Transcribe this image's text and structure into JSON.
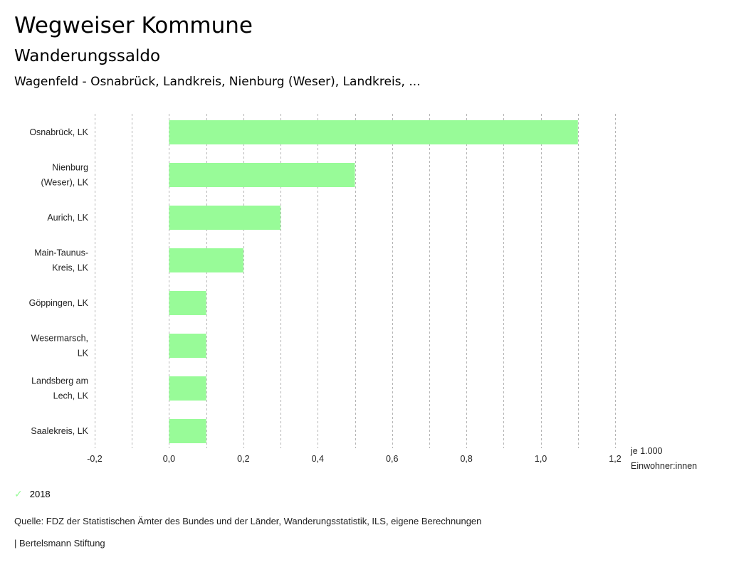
{
  "header": {
    "title": "Wegweiser Kommune",
    "subtitle": "Wanderungssaldo",
    "region": "Wagenfeld - Osnabrück, Landkreis, Nienburg (Weser), Landkreis, ..."
  },
  "legend": {
    "icon": "check-icon",
    "label": "2018"
  },
  "footer": {
    "source": "Quelle: FDZ der Statistischen Ämter des Bundes und der Länder, Wanderungsstatistik, ILS, eigene Berechnungen",
    "credit": "| Bertelsmann Stiftung"
  },
  "chart_data": {
    "type": "bar",
    "orientation": "horizontal",
    "categories": [
      [
        "Osnabrück, LK"
      ],
      [
        "Nienburg",
        "(Weser), LK"
      ],
      [
        "Aurich, LK"
      ],
      [
        "Main-Taunus-",
        "Kreis, LK"
      ],
      [
        "Göppingen, LK"
      ],
      [
        "Wesermarsch,",
        "LK"
      ],
      [
        "Landsberg am",
        "Lech, LK"
      ],
      [
        "Saalekreis, LK"
      ]
    ],
    "series": [
      {
        "name": "2018",
        "color": "#98fb98",
        "values": [
          1.1,
          0.5,
          0.3,
          0.2,
          0.1,
          0.1,
          0.1,
          0.1
        ]
      }
    ],
    "xlim": [
      -0.2,
      1.2
    ],
    "xticks": [
      -0.2,
      0.0,
      0.2,
      0.4,
      0.6,
      0.8,
      1.0,
      1.2
    ],
    "xtick_labels": [
      "-0,2",
      "0,0",
      "0,2",
      "0,4",
      "0,6",
      "0,8",
      "1,0",
      "1,2"
    ],
    "grid_step": 0.1,
    "grid": true,
    "xlabel": [
      "je 1.000",
      "Einwohner:innen"
    ],
    "legend_position": "bottom-left"
  }
}
